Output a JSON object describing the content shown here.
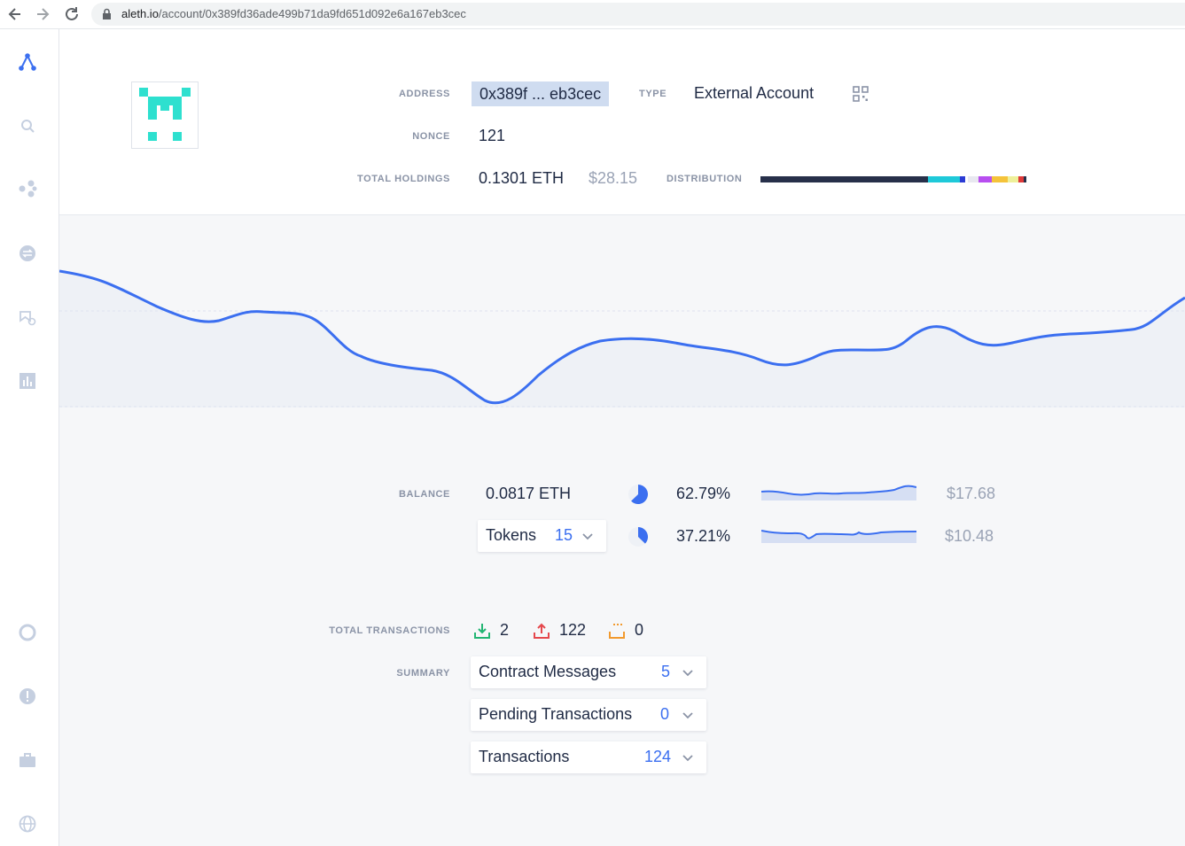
{
  "browser": {
    "url_host": "aleth.io",
    "url_path": "/account/0x389fd36ade499b71da9fd651d092e6a167eb3cec",
    "back_icon": "arrow-left-icon",
    "forward_icon": "arrow-right-icon",
    "reload_icon": "reload-icon"
  },
  "sidebar": {
    "items": [
      {
        "icon": "aleth-logo-icon"
      },
      {
        "icon": "search-icon"
      },
      {
        "icon": "network-icon"
      },
      {
        "icon": "exchange-icon"
      },
      {
        "icon": "bookmark-icon"
      },
      {
        "icon": "bar-chart-icon"
      },
      {
        "icon": "lifebuoy-icon"
      },
      {
        "icon": "alert-icon"
      },
      {
        "icon": "briefcase-icon"
      },
      {
        "icon": "globe-icon"
      }
    ]
  },
  "account": {
    "address_label": "ADDRESS",
    "address_value": "0x389f ... eb3cec",
    "type_label": "TYPE",
    "type_value": "External Account",
    "nonce_label": "NONCE",
    "nonce_value": "121",
    "holdings_label": "TOTAL HOLDINGS",
    "holdings_eth": "0.1301 ETH",
    "holdings_usd": "$28.15",
    "distribution_label": "DISTRIBUTION",
    "distribution": [
      {
        "color": "#27304a",
        "share": 0.63
      },
      {
        "color": "#1ec9d9",
        "share": 0.12
      },
      {
        "color": "#2b3bd4",
        "share": 0.02
      },
      {
        "color": "#ffffff",
        "share": 0.01
      },
      {
        "color": "#e8e8f0",
        "share": 0.04
      },
      {
        "color": "#b84ef0",
        "share": 0.05
      },
      {
        "color": "#f5c33a",
        "share": 0.06
      },
      {
        "color": "#eef09a",
        "share": 0.04
      },
      {
        "color": "#e03a3a",
        "share": 0.02
      },
      {
        "color": "#27304a",
        "share": 0.01
      }
    ]
  },
  "balance_section": {
    "balance_label": "BALANCE",
    "balance_eth": "0.0817 ETH",
    "balance_percent": "62.79%",
    "balance_fraction": 0.6279,
    "balance_usd": "$17.68",
    "tokens_label": "Tokens",
    "tokens_count": "15",
    "tokens_percent": "37.21%",
    "tokens_fraction": 0.3721,
    "tokens_usd": "$10.48"
  },
  "transactions": {
    "total_label": "TOTAL TRANSACTIONS",
    "incoming": "2",
    "outgoing": "122",
    "pending": "0",
    "summary_label": "SUMMARY",
    "summary": [
      {
        "label": "Contract Messages",
        "count": "5"
      },
      {
        "label": "Pending Transactions",
        "count": "0"
      },
      {
        "label": "Transactions",
        "count": "124"
      }
    ]
  },
  "colors": {
    "accent": "#3b6ff0",
    "identicon": "#2ee0cf",
    "incoming": "#22b573",
    "outgoing": "#e5484d",
    "pending": "#f29a2e"
  }
}
